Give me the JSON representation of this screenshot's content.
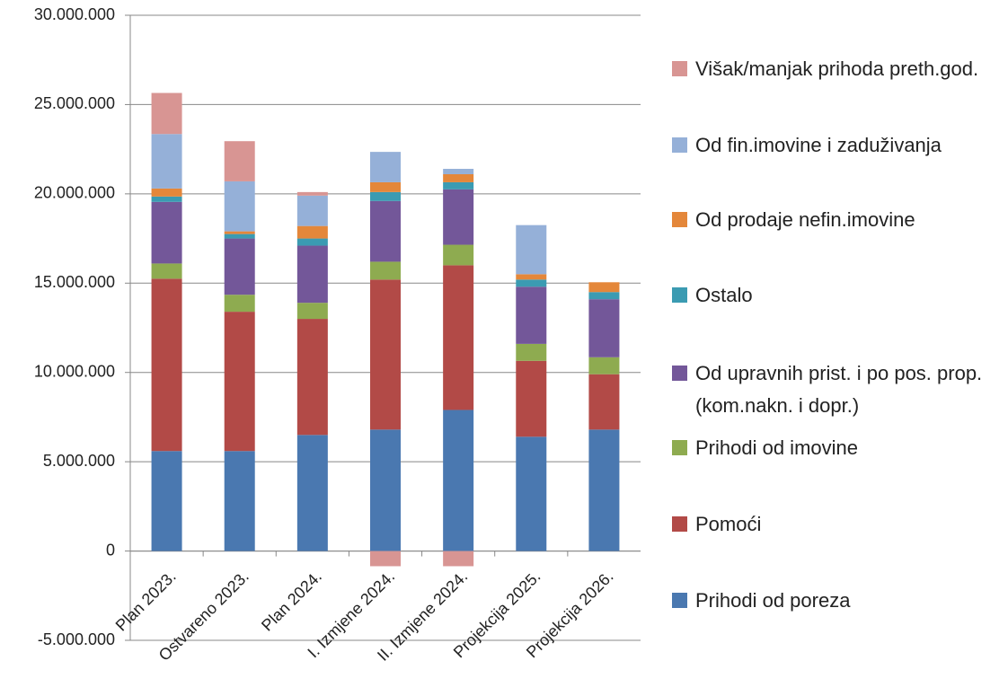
{
  "chart_data": {
    "type": "stacked_bar",
    "categories": [
      "Plan 2023.",
      "Ostvareno 2023.",
      "Plan 2024.",
      "I. Izmjene 2024.",
      "II. Izmjene 2024.",
      "Projekcija 2025.",
      "Projekcija 2026."
    ],
    "series": [
      {
        "name": "Prihodi od poreza",
        "color": "#4a78b0",
        "values": [
          5600000,
          5600000,
          6500000,
          6800000,
          7900000,
          6400000,
          6800000
        ]
      },
      {
        "name": "Pomoći",
        "color": "#b24a47",
        "values": [
          9650000,
          7800000,
          6500000,
          8400000,
          8100000,
          4250000,
          3100000
        ]
      },
      {
        "name": "Prihodi od imovine",
        "color": "#8eab50",
        "values": [
          850000,
          950000,
          900000,
          1000000,
          1150000,
          950000,
          950000
        ]
      },
      {
        "name": "Od upravnih prist. i po pos. prop. (kom.nakn. i dopr.)",
        "color": "#735799",
        "values": [
          3450000,
          3150000,
          3200000,
          3400000,
          3100000,
          3200000,
          3250000
        ]
      },
      {
        "name": "Ostalo",
        "color": "#3b9bb2",
        "values": [
          300000,
          250000,
          400000,
          500000,
          400000,
          400000,
          400000
        ]
      },
      {
        "name": "Od prodaje nefin.imovine",
        "color": "#e4873a",
        "values": [
          450000,
          150000,
          700000,
          550000,
          450000,
          300000,
          550000
        ]
      },
      {
        "name": "Od fin.imovine i zaduživanja",
        "color": "#95b0d8",
        "values": [
          3050000,
          2800000,
          1700000,
          1700000,
          300000,
          2750000,
          0
        ]
      },
      {
        "name": "Višak/manjak prihoda preth.god.",
        "color": "#d89593",
        "values": [
          2300000,
          2250000,
          200000,
          -850000,
          -850000,
          0,
          0
        ]
      }
    ],
    "ylim": [
      -5000000,
      30000000
    ],
    "yticks": [
      {
        "value": -5000000,
        "label": "-5.000.000"
      },
      0,
      {
        "value": 5000000,
        "label": "5.000.000"
      },
      {
        "value": 10000000,
        "label": "10.000.000"
      },
      {
        "value": 15000000,
        "label": "15.000.000"
      },
      {
        "value": 20000000,
        "label": "20.000.000"
      },
      {
        "value": 25000000,
        "label": "25.000.000"
      },
      {
        "value": 30000000,
        "label": "30.000.000"
      }
    ],
    "grid": true,
    "legend": "right"
  }
}
